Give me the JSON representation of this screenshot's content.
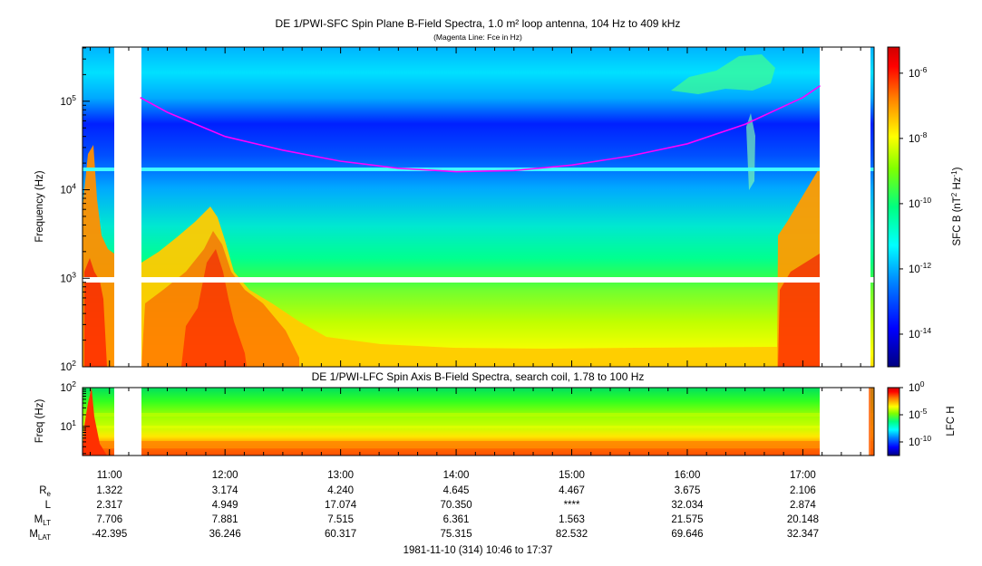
{
  "title": "DE 1/PWI-SFC  Spin Plane B-Field Spectra, 1.0 m² loop antenna, 104 Hz to 409 kHz",
  "subtitle": "(Magenta Line: Fce in Hz)",
  "lower_title": "DE 1/PWI-LFC  Spin Axis B-Field Spectra, search coil, 1.78 to 100 Hz",
  "footer": "1981-11-10 (314) 10:46 to 17:37",
  "colors": {
    "magenta_line": "#ff00ff",
    "cbar_stops": [
      "#000080",
      "#0000ff",
      "#0080ff",
      "#00ffff",
      "#00ff80",
      "#80ff00",
      "#ffff00",
      "#ff8000",
      "#ff0000",
      "#d00000"
    ]
  },
  "chart_data": [
    {
      "type": "heatmap",
      "title": "DE 1/PWI-SFC  Spin Plane B-Field Spectra, 1.0 m² loop antenna, 104 Hz to 409 kHz",
      "ylabel": "Frequency (Hz)",
      "yscale": "log",
      "ylim": [
        100,
        409000
      ],
      "y_ticks": [
        {
          "value": 100,
          "base": "10",
          "exp": "2"
        },
        {
          "value": 1000,
          "base": "10",
          "exp": "3"
        },
        {
          "value": 10000,
          "base": "10",
          "exp": "4"
        },
        {
          "value": 100000,
          "base": "10",
          "exp": "5"
        }
      ],
      "x_ticks": [
        "11:00",
        "12:00",
        "13:00",
        "14:00",
        "15:00",
        "16:00",
        "17:00"
      ],
      "x_range": [
        "10:46",
        "17:37"
      ],
      "colorbar": {
        "label_base": "SFC B (nT",
        "label_sup": "2",
        "label_mid": " Hz",
        "label_sup2": "-1",
        "label_end": ")",
        "scale": "log",
        "ticks": [
          {
            "value": 1e-06,
            "base": "10",
            "exp": "-6"
          },
          {
            "value": 1e-08,
            "base": "10",
            "exp": "-8"
          },
          {
            "value": 1e-10,
            "base": "10",
            "exp": "-10"
          },
          {
            "value": 1e-12,
            "base": "10",
            "exp": "-12"
          },
          {
            "value": 1e-14,
            "base": "10",
            "exp": "-14"
          }
        ]
      },
      "data_gaps": [
        [
          "11:02",
          "11:16"
        ],
        [
          "17:09",
          "17:37"
        ]
      ],
      "overlay_line": {
        "name": "Fce in Hz",
        "x": [
          "11:16",
          "11:30",
          "12:00",
          "12:30",
          "13:00",
          "13:30",
          "14:00",
          "14:30",
          "15:00",
          "15:30",
          "16:00",
          "16:30",
          "17:00",
          "17:09"
        ],
        "y": [
          110000,
          75000,
          40000,
          28000,
          21000,
          17500,
          16000,
          16500,
          19000,
          24000,
          33000,
          55000,
          110000,
          150000
        ]
      }
    },
    {
      "type": "heatmap",
      "title": "DE 1/PWI-LFC  Spin Axis B-Field Spectra, search coil, 1.78 to 100 Hz",
      "ylabel": "Freq (Hz)",
      "yscale": "log",
      "ylim": [
        1.78,
        100
      ],
      "y_ticks": [
        {
          "value": 10,
          "base": "10",
          "exp": "1"
        },
        {
          "value": 100,
          "base": "10",
          "exp": "2"
        }
      ],
      "colorbar": {
        "label": "LFC H",
        "scale": "log",
        "ticks": [
          {
            "value": 1,
            "base": "10",
            "exp": "0"
          },
          {
            "value": 1e-05,
            "base": "10",
            "exp": "-5"
          },
          {
            "value": 1e-10,
            "base": "10",
            "exp": "-10"
          }
        ]
      },
      "data_gaps": [
        [
          "11:02",
          "11:16"
        ],
        [
          "17:09",
          "17:37"
        ]
      ]
    }
  ],
  "ephemeris": {
    "labels": [
      {
        "base": "R",
        "sub": "e"
      },
      {
        "base": "L",
        "sub": ""
      },
      {
        "base": "M",
        "sub": "LT"
      },
      {
        "base": "M",
        "sub": "LAT"
      }
    ],
    "rows": [
      [
        "1.322",
        "3.174",
        "4.240",
        "4.645",
        "4.467",
        "3.675",
        "2.106"
      ],
      [
        "2.317",
        "4.949",
        "17.074",
        "70.350",
        "****",
        "32.034",
        "2.874"
      ],
      [
        "7.706",
        "7.881",
        "7.515",
        "6.361",
        "1.563",
        "21.575",
        "20.148"
      ],
      [
        "-42.395",
        "36.246",
        "60.317",
        "75.315",
        "82.532",
        "69.646",
        "32.347"
      ]
    ]
  }
}
